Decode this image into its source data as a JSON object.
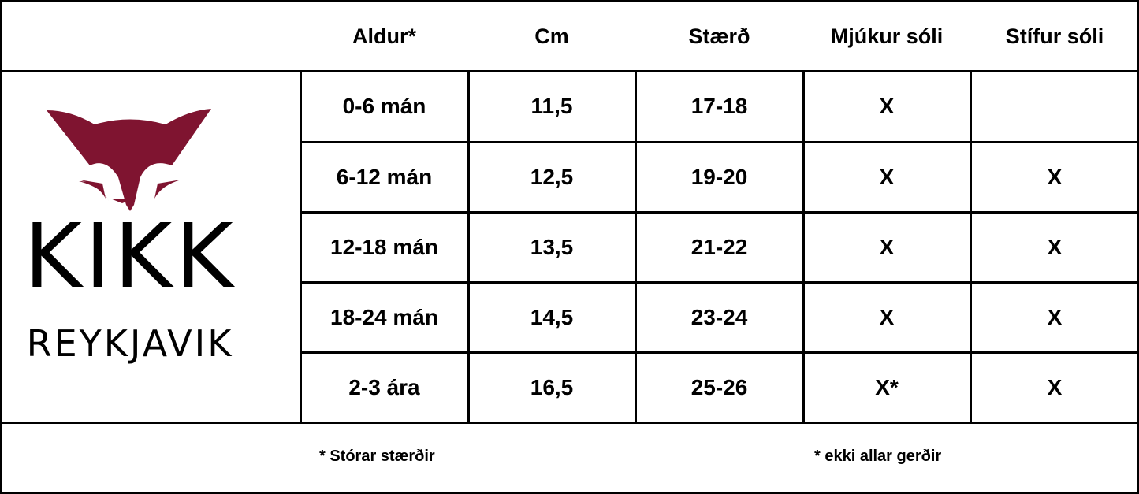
{
  "headers": [
    "Aldur*",
    "Cm",
    "Stærð",
    "Mjúkur sóli",
    "Stífur sóli"
  ],
  "rows": [
    [
      "0-6 mán",
      "11,5",
      "17-18",
      "X",
      ""
    ],
    [
      "6-12 mán",
      "12,5",
      "19-20",
      "X",
      "X"
    ],
    [
      "12-18 mán",
      "13,5",
      "21-22",
      "X",
      "X"
    ],
    [
      "18-24 mán",
      "14,5",
      "23-24",
      "X",
      "X"
    ],
    [
      "2-3 ára",
      "16,5",
      "25-26",
      "X*",
      "X"
    ]
  ],
  "footer": {
    "left": "* Stórar stærðir",
    "right": "* ekki allar gerðir"
  },
  "logo": {
    "name": "KIKK",
    "sub": "REYKJAVIK",
    "color": "#7f1430"
  }
}
